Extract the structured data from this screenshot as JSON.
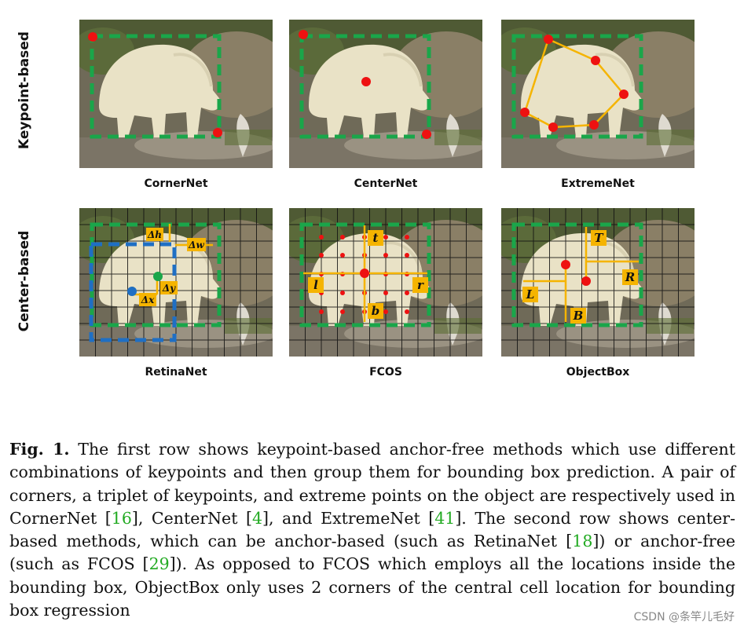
{
  "row_labels": {
    "top": "Keypoint-based",
    "bottom": "Center-based"
  },
  "panels": {
    "cornernet": "CornerNet",
    "centernet": "CenterNet",
    "extremenet": "ExtremeNet",
    "retinanet": "RetinaNet",
    "fcos": "FCOS",
    "objectbox": "ObjectBox"
  },
  "annotations": {
    "dh": "Δh",
    "dw": "Δw",
    "dx": "Δx",
    "dy": "Δy",
    "t": "t",
    "l": "l",
    "r": "r",
    "b": "b",
    "T": "T",
    "L": "L",
    "R": "R",
    "B": "B"
  },
  "caption": {
    "fig_label": "Fig. 1.",
    "p1": " The first row shows keypoint-based anchor-free methods which use different combinations of keypoints and then group them for bounding box prediction. A pair of corners, a triplet of keypoints, and extreme points on the object are respectively used in CornerNet [",
    "c16": "16",
    "p2": "], CenterNet [",
    "c4": "4",
    "p3": "], and ExtremeNet [",
    "c41": "41",
    "p4": "]. The second row shows center-based methods, which can be anchor-based (such as RetinaNet [",
    "c18": "18",
    "p5": "]) or anchor-free (such as FCOS [",
    "c29": "29",
    "p6": "]). As opposed to FCOS which employs all the locations inside the bounding box, ObjectBox only uses 2 corners of the central cell location for bounding box regression"
  },
  "watermark": "CSDN @条竿儿毛好",
  "colors": {
    "box": "#1aa64a",
    "point": "#ee1111",
    "arrow": "#f5b400",
    "anchor": "#1f6fc4"
  }
}
